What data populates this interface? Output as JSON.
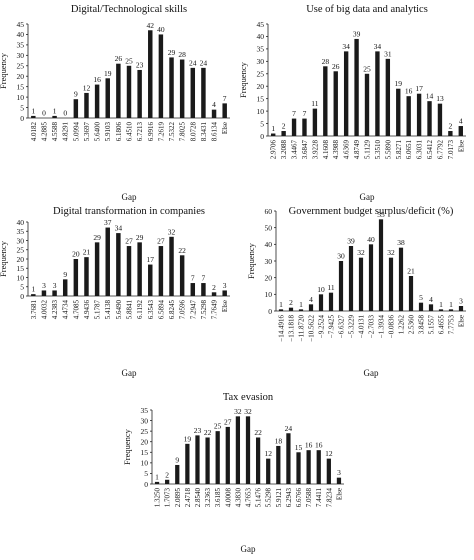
{
  "chart_data": [
    {
      "type": "bar",
      "title": "Digital/Technological skills",
      "xlabel": "Gap",
      "ylabel": "Frequency",
      "ylim": [
        0,
        45
      ],
      "yticks": [
        0,
        5,
        10,
        15,
        20,
        25,
        30,
        35,
        40,
        45
      ],
      "categories": [
        "4.0182",
        "4.2885",
        "4.5588",
        "4.8291",
        "5.0994",
        "5.3697",
        "5.6400",
        "5.9103",
        "6.1806",
        "6.4510",
        "6.7213",
        "6.9916",
        "7.2619",
        "7.5322",
        "7.8025",
        "8.0728",
        "8.3431",
        "8.6134",
        "Else"
      ],
      "values": [
        1,
        0,
        1,
        0,
        9,
        12,
        16,
        19,
        26,
        25,
        23,
        42,
        40,
        29,
        28,
        24,
        24,
        4,
        7
      ]
    },
    {
      "type": "bar",
      "title": "Use of big data and analytics",
      "xlabel": "Gap",
      "ylabel": "Frequency",
      "ylim": [
        0,
        45
      ],
      "yticks": [
        0,
        5,
        10,
        15,
        20,
        25,
        30,
        35,
        40,
        45
      ],
      "categories": [
        "2.9706",
        "3.2088",
        "3.4467",
        "3.6847",
        "3.9228",
        "4.1608",
        "4.3988",
        "4.6369",
        "4.8749",
        "5.1129",
        "5.3510",
        "5.5890",
        "5.8271",
        "6.0651",
        "6.3031",
        "6.5412",
        "6.7792",
        "7.0173",
        "Else"
      ],
      "values": [
        1,
        2,
        7,
        7,
        11,
        28,
        26,
        34,
        39,
        25,
        34,
        31,
        19,
        16,
        17,
        14,
        13,
        2,
        4
      ]
    },
    {
      "type": "bar",
      "title": "Digital transformation in companies",
      "xlabel": "Gap",
      "ylabel": "Frequency",
      "ylim": [
        0,
        40
      ],
      "yticks": [
        0,
        5,
        10,
        15,
        20,
        25,
        30,
        35,
        40
      ],
      "categories": [
        "3.7681",
        "4.0032",
        "4.2383",
        "4.4734",
        "4.7085",
        "4.9436",
        "5.1787",
        "5.4138",
        "5.6490",
        "5.8841",
        "6.1192",
        "6.3543",
        "6.5894",
        "6.8245",
        "7.0596",
        "7.2947",
        "7.5298",
        "7.7649",
        "Else"
      ],
      "values": [
        1,
        3,
        3,
        9,
        20,
        21,
        29,
        37,
        34,
        27,
        29,
        17,
        27,
        32,
        22,
        7,
        7,
        2,
        3
      ]
    },
    {
      "type": "bar",
      "title": "Government budget surplus/deficit (%)",
      "xlabel": "Gap",
      "ylabel": "Frequency",
      "ylim": [
        0,
        60
      ],
      "yticks": [
        0,
        10,
        20,
        30,
        40,
        50,
        60
      ],
      "categories": [
        "−14.4916",
        "−13.1818",
        "−11.8720",
        "−10.5622",
        "−9.2524",
        "−7.9425",
        "−6.6327",
        "−5.3229",
        "−4.0131",
        "−2.7033",
        "−1.3934",
        "−0.0836",
        "1.2262",
        "2.5360",
        "3.8458",
        "5.1557",
        "6.4655",
        "7.7753",
        "Else"
      ],
      "values": [
        1,
        2,
        1,
        4,
        10,
        11,
        30,
        39,
        32,
        40,
        55,
        32,
        38,
        21,
        5,
        4,
        1,
        1,
        3
      ]
    },
    {
      "type": "bar",
      "title": "Tax evasion",
      "xlabel": "Gap",
      "ylabel": "Frequency",
      "ylim": [
        0,
        35
      ],
      "yticks": [
        0,
        5,
        10,
        15,
        20,
        25,
        30,
        35
      ],
      "categories": [
        "1.3250",
        "1.7073",
        "2.0895",
        "2.4718",
        "2.8540",
        "3.2363",
        "3.6185",
        "4.0008",
        "4.3830",
        "4.7653",
        "5.1476",
        "5.5298",
        "5.9121",
        "6.2943",
        "6.6766",
        "7.0588",
        "7.4411",
        "7.8234",
        "Else"
      ],
      "values": [
        1,
        2,
        9,
        19,
        23,
        22,
        25,
        27,
        32,
        32,
        22,
        12,
        18,
        24,
        15,
        16,
        16,
        12,
        3
      ]
    }
  ]
}
